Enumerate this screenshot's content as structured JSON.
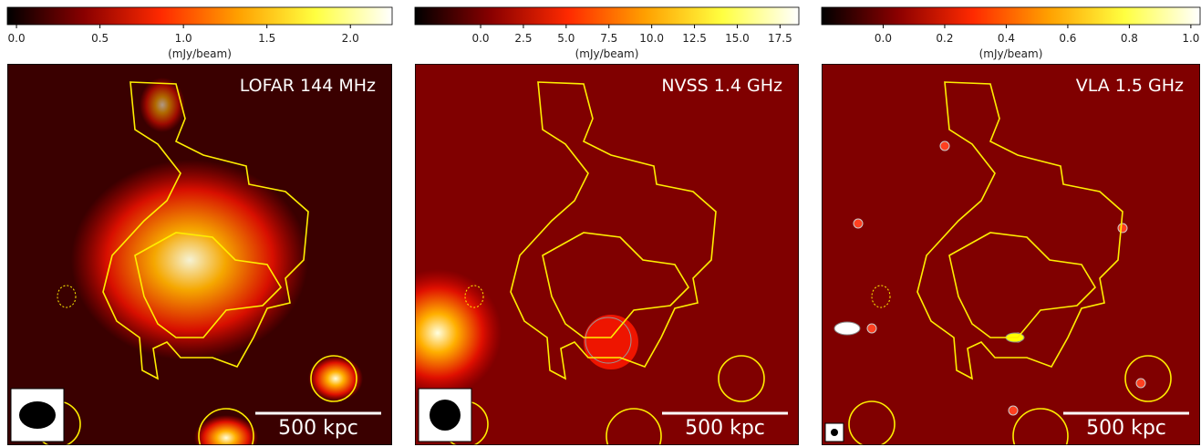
{
  "chart_data": [
    {
      "type": "image",
      "title": "LOFAR 144 MHz",
      "colorbar_label": "(mJy/beam)",
      "scalebar_label": "500 kpc",
      "colormap": [
        "#000000",
        "#8a0000",
        "#ff2a00",
        "#ffa000",
        "#ffff40",
        "#ffffff"
      ],
      "clim": [
        -0.055,
        2.25
      ],
      "cticks": [
        {
          "value": 0,
          "label": "0.0"
        },
        0.5,
        {
          "value": 1,
          "label": "1.0"
        },
        1.5,
        {
          "value": 2,
          "label": "2.0"
        }
      ]
    },
    {
      "type": "image",
      "title": "NVSS 1.4 GHz",
      "colorbar_label": "(mJy/beam)",
      "scalebar_label": "500 kpc",
      "colormap": [
        "#000000",
        "#8a0000",
        "#ff2a00",
        "#ffa000",
        "#ffff40",
        "#ffffff"
      ],
      "clim": [
        -3.84,
        18.6
      ],
      "cticks": [
        {
          "value": 0,
          "label": "0.0"
        },
        2.5,
        {
          "value": 5,
          "label": "5.0"
        },
        7.5,
        {
          "value": 10,
          "label": "10.0"
        },
        12.5,
        {
          "value": 15,
          "label": "15.0"
        },
        17.5
      ]
    },
    {
      "type": "image",
      "title": "VLA 1.5 GHz",
      "colorbar_label": "(mJy/beam)",
      "scalebar_label": "500 kpc",
      "colormap": [
        "#000000",
        "#8a0000",
        "#ff2a00",
        "#ffa000",
        "#ffff40",
        "#ffffff"
      ],
      "clim": [
        -0.2,
        1.03
      ],
      "cticks": [
        {
          "value": 0,
          "label": "0.0"
        },
        0.2,
        0.4,
        0.6,
        0.8,
        {
          "value": 1,
          "label": "1.0"
        }
      ]
    }
  ]
}
